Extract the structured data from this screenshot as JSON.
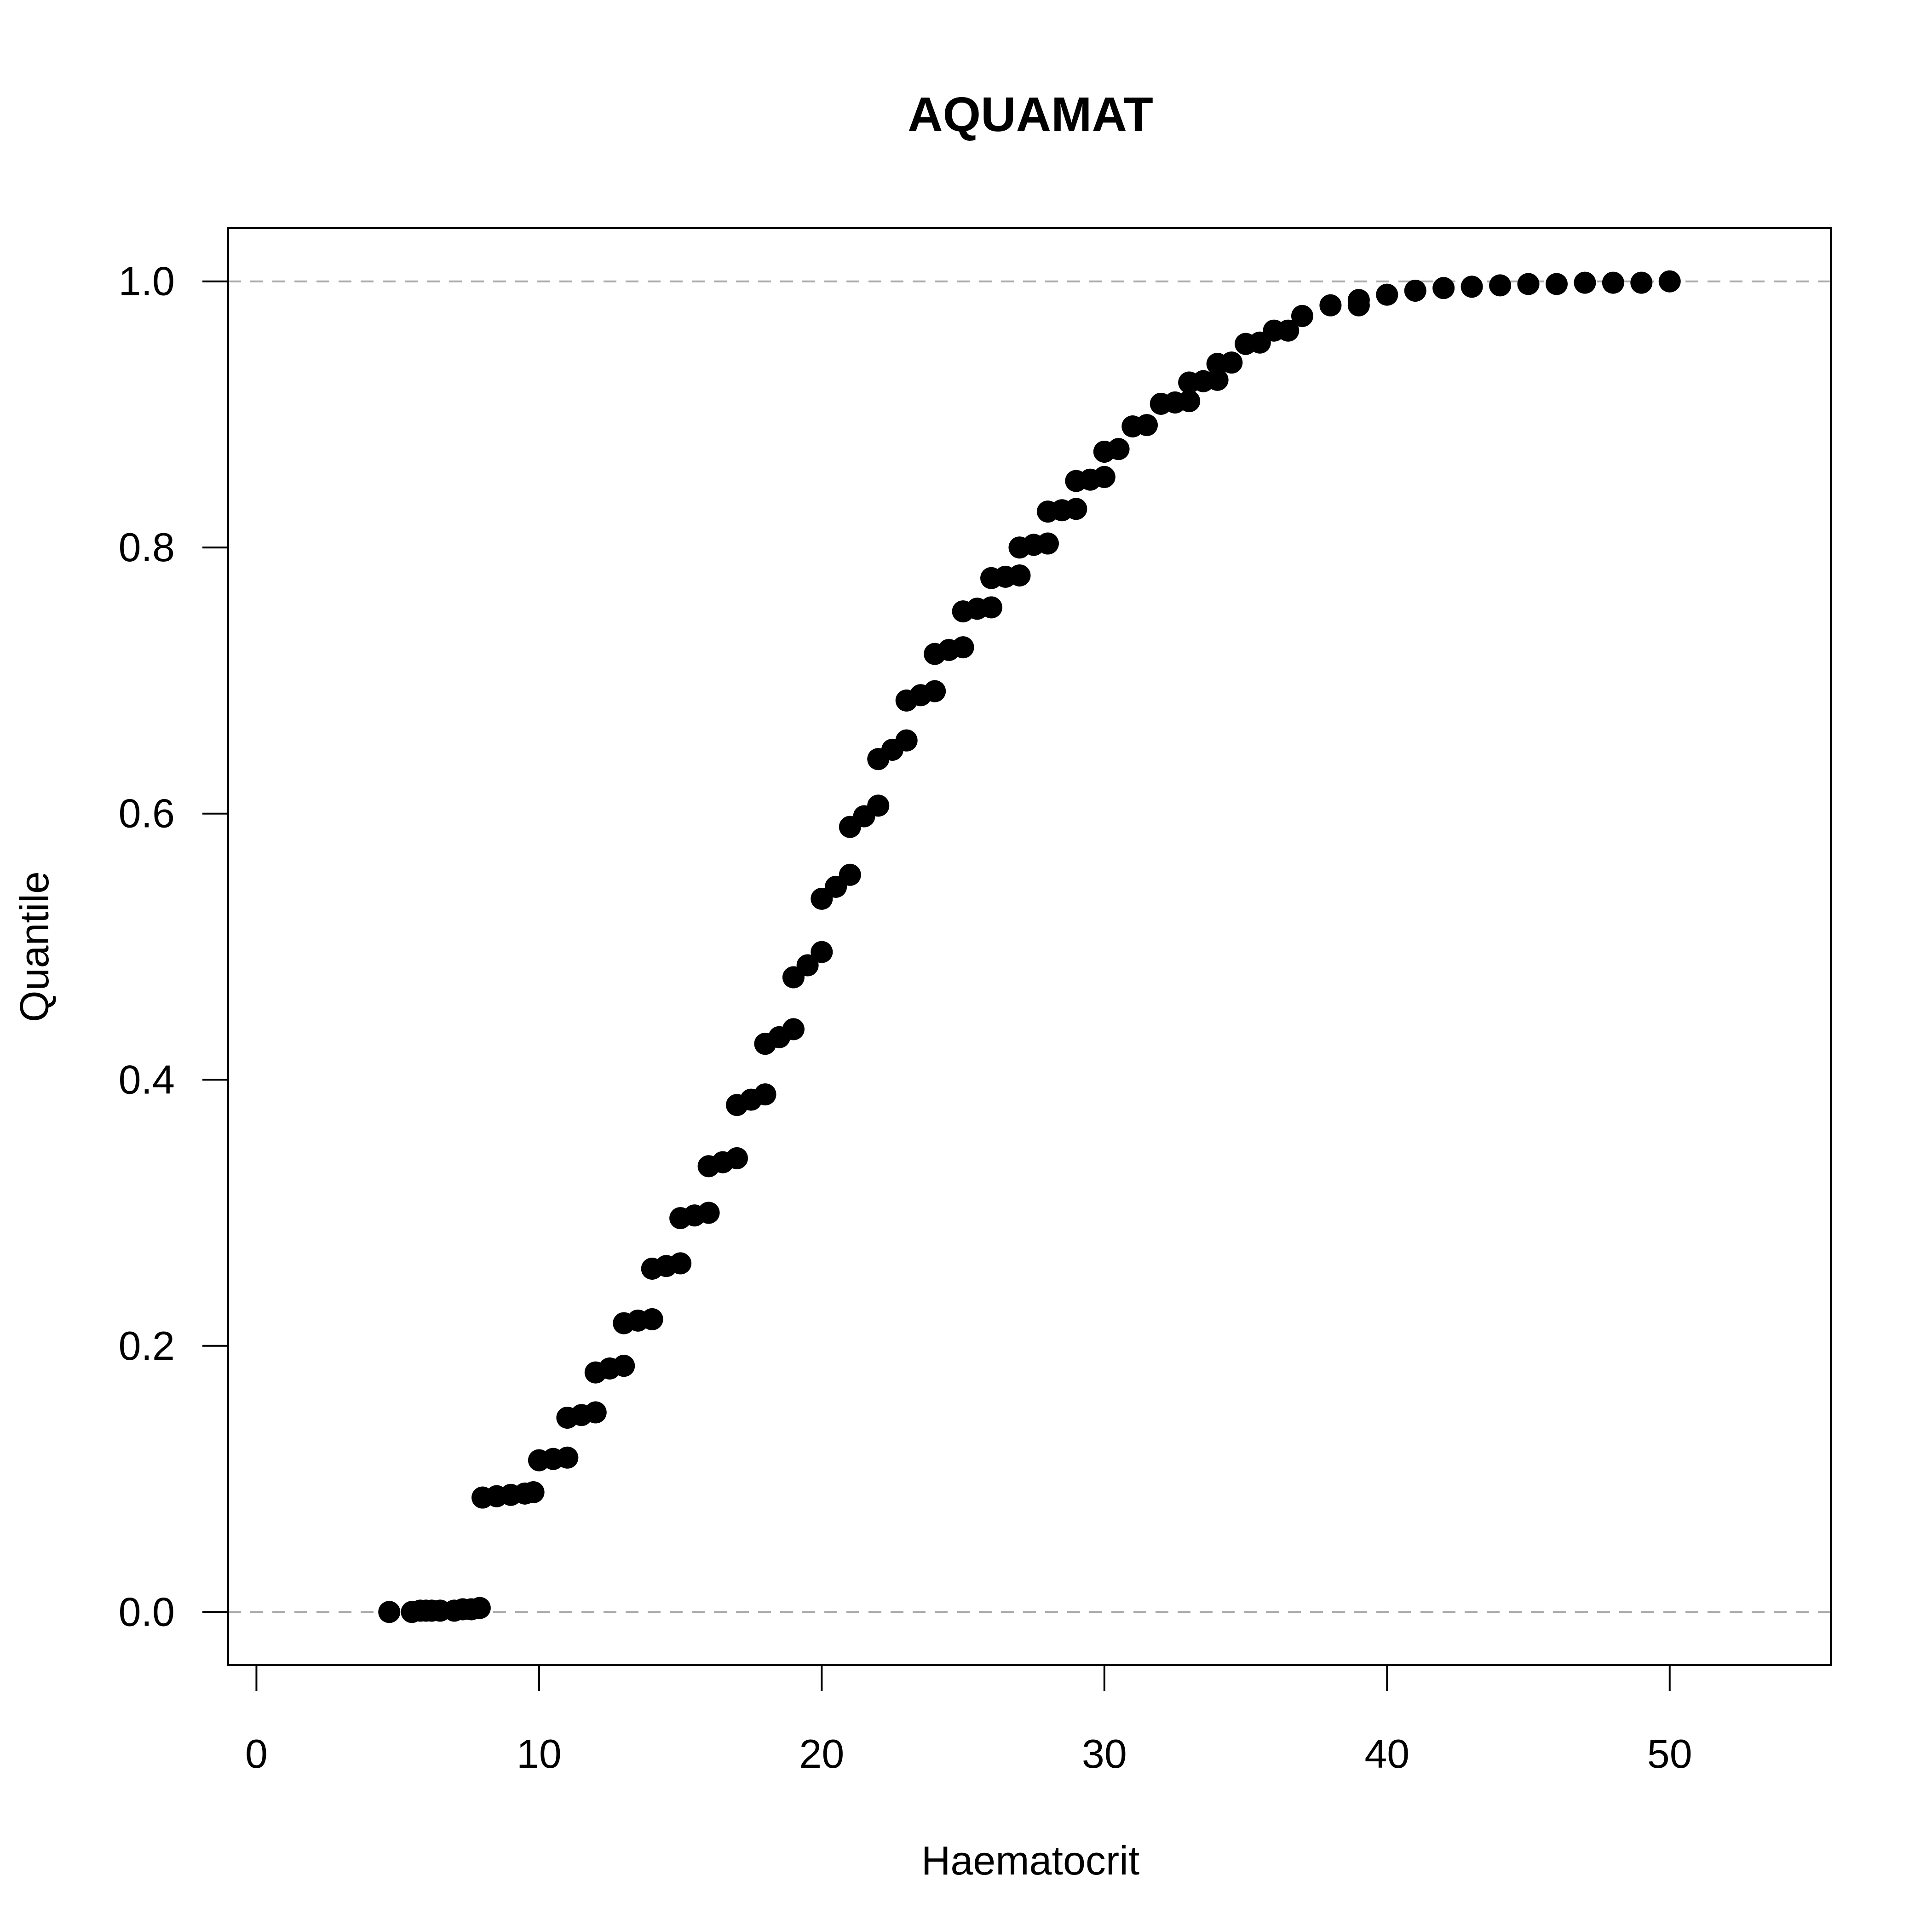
{
  "chart_data": {
    "type": "scatter",
    "title": "AQUAMAT",
    "xlabel": "Haematocrit",
    "ylabel": "Quantile",
    "xlim": [
      -1,
      55.7
    ],
    "ylim": [
      -0.04,
      1.04
    ],
    "x_ticks": [
      0,
      10,
      20,
      30,
      40,
      50
    ],
    "y_ticks": [
      0.0,
      0.2,
      0.4,
      0.6,
      0.8,
      1.0
    ],
    "x_tick_labels": [
      "0",
      "10",
      "20",
      "30",
      "40",
      "50"
    ],
    "y_tick_labels": [
      "0.0",
      "0.2",
      "0.4",
      "0.6",
      "0.8",
      "1.0"
    ],
    "reference_lines_y": [
      0,
      1
    ],
    "grid": false,
    "legend": "none",
    "colors": {
      "points": "#000000",
      "reference_line": "#aaaaaa",
      "axes": "#000000"
    },
    "series": [
      {
        "points": [
          [
            4.7,
            0.0
          ],
          [
            5.5,
            0.0
          ],
          [
            5.8,
            0.001
          ],
          [
            6.0,
            0.001
          ],
          [
            6.2,
            0.001
          ],
          [
            6.5,
            0.001
          ],
          [
            7.0,
            0.001
          ],
          [
            7.3,
            0.002
          ],
          [
            7.6,
            0.002
          ],
          [
            7.9,
            0.003
          ],
          [
            8.0,
            0.086
          ],
          [
            8.5,
            0.087
          ],
          [
            9.0,
            0.088
          ],
          [
            9.5,
            0.089
          ],
          [
            9.8,
            0.09
          ],
          [
            10.0,
            0.114
          ],
          [
            10.5,
            0.115
          ],
          [
            11.0,
            0.116
          ],
          [
            11.0,
            0.146
          ],
          [
            11.5,
            0.148
          ],
          [
            12.0,
            0.15
          ],
          [
            12.0,
            0.18
          ],
          [
            12.5,
            0.183
          ],
          [
            13.0,
            0.185
          ],
          [
            13.0,
            0.217
          ],
          [
            13.5,
            0.219
          ],
          [
            14.0,
            0.22
          ],
          [
            14.0,
            0.258
          ],
          [
            14.5,
            0.26
          ],
          [
            15.0,
            0.262
          ],
          [
            15.0,
            0.296
          ],
          [
            15.5,
            0.298
          ],
          [
            16.0,
            0.3
          ],
          [
            16.0,
            0.335
          ],
          [
            16.5,
            0.338
          ],
          [
            17.0,
            0.341
          ],
          [
            17.0,
            0.381
          ],
          [
            17.5,
            0.385
          ],
          [
            18.0,
            0.389
          ],
          [
            18.0,
            0.427
          ],
          [
            18.5,
            0.432
          ],
          [
            19.0,
            0.438
          ],
          [
            19.0,
            0.477
          ],
          [
            19.5,
            0.486
          ],
          [
            20.0,
            0.496
          ],
          [
            20.0,
            0.536
          ],
          [
            20.5,
            0.545
          ],
          [
            21.0,
            0.554
          ],
          [
            21.0,
            0.59
          ],
          [
            21.5,
            0.598
          ],
          [
            22.0,
            0.606
          ],
          [
            22.0,
            0.641
          ],
          [
            22.5,
            0.648
          ],
          [
            23.0,
            0.655
          ],
          [
            23.0,
            0.685
          ],
          [
            23.5,
            0.689
          ],
          [
            24.0,
            0.692
          ],
          [
            24.0,
            0.72
          ],
          [
            24.5,
            0.723
          ],
          [
            25.0,
            0.725
          ],
          [
            25.0,
            0.752
          ],
          [
            25.5,
            0.754
          ],
          [
            26.0,
            0.755
          ],
          [
            26.0,
            0.777
          ],
          [
            26.5,
            0.778
          ],
          [
            27.0,
            0.779
          ],
          [
            27.0,
            0.8
          ],
          [
            27.5,
            0.802
          ],
          [
            28.0,
            0.803
          ],
          [
            28.0,
            0.827
          ],
          [
            28.5,
            0.828
          ],
          [
            29.0,
            0.829
          ],
          [
            29.0,
            0.85
          ],
          [
            29.5,
            0.851
          ],
          [
            30.0,
            0.853
          ],
          [
            30.0,
            0.872
          ],
          [
            30.5,
            0.874
          ],
          [
            31.0,
            0.891
          ],
          [
            31.5,
            0.892
          ],
          [
            32.0,
            0.908
          ],
          [
            32.5,
            0.909
          ],
          [
            33.0,
            0.91
          ],
          [
            33.0,
            0.924
          ],
          [
            33.5,
            0.925
          ],
          [
            34.0,
            0.926
          ],
          [
            34.0,
            0.938
          ],
          [
            34.5,
            0.939
          ],
          [
            35.0,
            0.953
          ],
          [
            35.5,
            0.954
          ],
          [
            36.0,
            0.963
          ],
          [
            36.5,
            0.963
          ],
          [
            37.0,
            0.974
          ],
          [
            38.0,
            0.982
          ],
          [
            39.0,
            0.986
          ],
          [
            39.0,
            0.982
          ],
          [
            40.0,
            0.99
          ],
          [
            41.0,
            0.993
          ],
          [
            42.0,
            0.995
          ],
          [
            43.0,
            0.996
          ],
          [
            44.0,
            0.997
          ],
          [
            45.0,
            0.998
          ],
          [
            46.0,
            0.998
          ],
          [
            47.0,
            0.999
          ],
          [
            48.0,
            0.999
          ],
          [
            49.0,
            0.999
          ],
          [
            50.0,
            1.0
          ]
        ]
      }
    ]
  }
}
